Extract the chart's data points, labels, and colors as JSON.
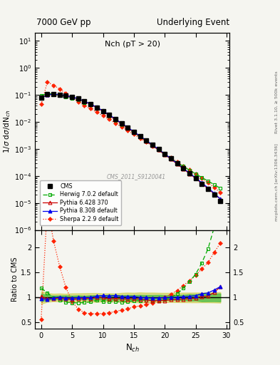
{
  "title_left": "7000 GeV pp",
  "title_right": "Underlying Event",
  "plot_title": "Nch (pT > 20)",
  "ylabel_main": "1/σ dσ/dN_{ch}",
  "ylabel_ratio": "Ratio to CMS",
  "xlabel": "N_{ch}",
  "right_label_top": "Rivet 3.1.10, ≥ 500k events",
  "right_label_bot": "mcplots.cern.ch [arXiv:1306.3436]",
  "watermark": "CMS_2011_S9120041",
  "cms_x": [
    0,
    1,
    2,
    3,
    4,
    5,
    6,
    7,
    8,
    9,
    10,
    11,
    12,
    13,
    14,
    15,
    16,
    17,
    18,
    19,
    20,
    21,
    22,
    23,
    24,
    25,
    26,
    27,
    28,
    29
  ],
  "cms_y": [
    0.08,
    0.105,
    0.108,
    0.102,
    0.096,
    0.086,
    0.073,
    0.059,
    0.046,
    0.034,
    0.025,
    0.018,
    0.0125,
    0.0088,
    0.0062,
    0.0043,
    0.003,
    0.0021,
    0.00145,
    0.00098,
    0.00066,
    0.00044,
    0.00029,
    0.00019,
    0.000125,
    8.2e-05,
    5.2e-05,
    3.3e-05,
    2e-05,
    1.15e-05
  ],
  "cms_yerr": [
    0.006,
    0.005,
    0.004,
    0.004,
    0.004,
    0.003,
    0.003,
    0.002,
    0.002,
    0.0015,
    0.001,
    0.001,
    0.0006,
    0.0004,
    0.0003,
    0.0002,
    0.00015,
    0.0001,
    7e-05,
    5e-05,
    3e-05,
    2e-05,
    1.5e-05,
    1e-05,
    8e-06,
    5e-06,
    4e-06,
    2.5e-06,
    1.5e-06,
    9e-07
  ],
  "cms_syserr": [
    0.01,
    0.009,
    0.008,
    0.008,
    0.007,
    0.007,
    0.006,
    0.005,
    0.004,
    0.003,
    0.002,
    0.0015,
    0.001,
    0.0008,
    0.0006,
    0.0004,
    0.0003,
    0.0002,
    0.00014,
    9e-05,
    6e-05,
    4e-05,
    2.7e-05,
    1.8e-05,
    1.2e-05,
    8e-06,
    5e-06,
    3.2e-06,
    2e-06,
    1.2e-06
  ],
  "herwig_x": [
    0,
    1,
    2,
    3,
    4,
    5,
    6,
    7,
    8,
    9,
    10,
    11,
    12,
    13,
    14,
    15,
    16,
    17,
    18,
    19,
    20,
    21,
    22,
    23,
    24,
    25,
    26,
    27,
    28,
    29
  ],
  "herwig_y": [
    0.095,
    0.115,
    0.107,
    0.097,
    0.087,
    0.077,
    0.065,
    0.053,
    0.042,
    0.032,
    0.023,
    0.0165,
    0.0115,
    0.008,
    0.0057,
    0.004,
    0.0028,
    0.002,
    0.00135,
    0.00092,
    0.00063,
    0.00044,
    0.00031,
    0.000225,
    0.000165,
    0.00012,
    8.8e-05,
    6.5e-05,
    4.8e-05,
    3.5e-05
  ],
  "pythia6_x": [
    0,
    1,
    2,
    3,
    4,
    5,
    6,
    7,
    8,
    9,
    10,
    11,
    12,
    13,
    14,
    15,
    16,
    17,
    18,
    19,
    20,
    21,
    22,
    23,
    24,
    25,
    26,
    27,
    28,
    29
  ],
  "pythia6_y": [
    0.082,
    0.102,
    0.106,
    0.101,
    0.093,
    0.083,
    0.071,
    0.058,
    0.045,
    0.034,
    0.025,
    0.0175,
    0.0122,
    0.0086,
    0.006,
    0.0042,
    0.0029,
    0.002,
    0.00135,
    0.00092,
    0.00062,
    0.00042,
    0.000278,
    0.000184,
    0.000122,
    8.1e-05,
    5.3e-05,
    3.4e-05,
    2.2e-05,
    1.4e-05
  ],
  "pythia8_x": [
    0,
    1,
    2,
    3,
    4,
    5,
    6,
    7,
    8,
    9,
    10,
    11,
    12,
    13,
    14,
    15,
    16,
    17,
    18,
    19,
    20,
    21,
    22,
    23,
    24,
    25,
    26,
    27,
    28,
    29
  ],
  "pythia8_y": [
    0.078,
    0.101,
    0.107,
    0.103,
    0.095,
    0.085,
    0.073,
    0.059,
    0.046,
    0.035,
    0.026,
    0.0185,
    0.013,
    0.009,
    0.0063,
    0.0044,
    0.003,
    0.0021,
    0.00143,
    0.00097,
    0.00066,
    0.00044,
    0.000292,
    0.000193,
    0.000128,
    8.5e-05,
    5.6e-05,
    3.6e-05,
    2.3e-05,
    1.4e-05
  ],
  "sherpa_x": [
    0,
    1,
    2,
    3,
    4,
    5,
    6,
    7,
    8,
    9,
    10,
    11,
    12,
    13,
    14,
    15,
    16,
    17,
    18,
    19,
    20,
    21,
    22,
    23,
    24,
    25,
    26,
    27,
    28,
    29
  ],
  "sherpa_y": [
    0.045,
    0.3,
    0.23,
    0.165,
    0.115,
    0.079,
    0.056,
    0.041,
    0.031,
    0.023,
    0.017,
    0.0125,
    0.009,
    0.0066,
    0.0048,
    0.0035,
    0.0025,
    0.0018,
    0.0013,
    0.00093,
    0.00066,
    0.00047,
    0.00033,
    0.000235,
    0.000167,
    0.000118,
    8.2e-05,
    5.6e-05,
    3.8e-05,
    2.4e-05
  ],
  "cms_color": "#000000",
  "herwig_color": "#00aa00",
  "pythia6_color": "#cc0000",
  "pythia8_color": "#0000ee",
  "sherpa_color": "#ff2200",
  "bg_color": "#f5f5f0",
  "ylim_main": [
    1e-06,
    20.0
  ],
  "ylim_ratio": [
    0.38,
    2.35
  ],
  "xlim": [
    -1,
    30.5
  ],
  "ratio_yticks": [
    0.5,
    1.0,
    1.5,
    2.0
  ],
  "ratio_band_inner_color": "#44bb44",
  "ratio_band_outer_color": "#cccc44"
}
